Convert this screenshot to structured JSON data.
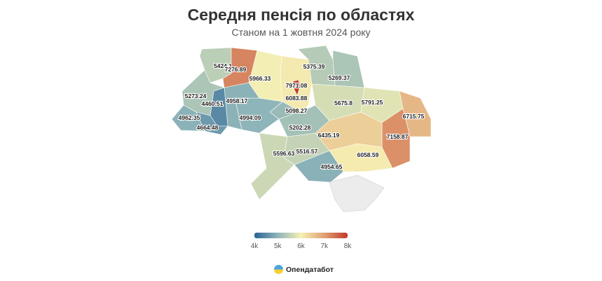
{
  "title": "Середня пенсія по областях",
  "subtitle": "Станом на 1 жовтня 2024 року",
  "legend": {
    "ticks": [
      "4k",
      "5k",
      "6k",
      "7k",
      "8k"
    ],
    "min": 4000,
    "max": 8000,
    "colors": [
      "#2a6394",
      "#8fb5b9",
      "#f6f0b3",
      "#e0a174",
      "#c0392b"
    ]
  },
  "regions": [
    {
      "label": "5424.1",
      "value": 5424.1
    },
    {
      "label": "7276.89",
      "value": 7276.89
    },
    {
      "label": "5966.33",
      "value": 5966.33
    },
    {
      "label": "6083.88",
      "value": 6083.88
    },
    {
      "label": "5375.39",
      "value": 5375.39
    },
    {
      "label": "5269.37",
      "value": 5269.37
    },
    {
      "label": "5675.8",
      "value": 5675.8
    },
    {
      "label": "5791.25",
      "value": 5791.25
    },
    {
      "label": "6715.75",
      "value": 6715.75
    },
    {
      "label": "7158.87",
      "value": 7158.87
    },
    {
      "label": "6435.19",
      "value": 6435.19
    },
    {
      "label": "6058.59",
      "value": 6058.59
    },
    {
      "label": "4954.65",
      "value": 4954.65
    },
    {
      "label": "5516.57",
      "value": 5516.57
    },
    {
      "label": "5596.63",
      "value": 5596.63
    },
    {
      "label": "5202.28",
      "value": 5202.28
    },
    {
      "label": "5098.27",
      "value": 5098.27
    },
    {
      "label": "4994.09",
      "value": 4994.09
    },
    {
      "label": "4958.17",
      "value": 4958.17
    },
    {
      "label": "4460.51",
      "value": 4460.51
    },
    {
      "label": "5273.24",
      "value": 5273.24
    },
    {
      "label": "4962.35",
      "value": 4962.35
    },
    {
      "label": "4664.48",
      "value": 4664.48
    },
    {
      "label": "7971.08",
      "value": 7971.08
    }
  ],
  "brand": "Опендатабот"
}
